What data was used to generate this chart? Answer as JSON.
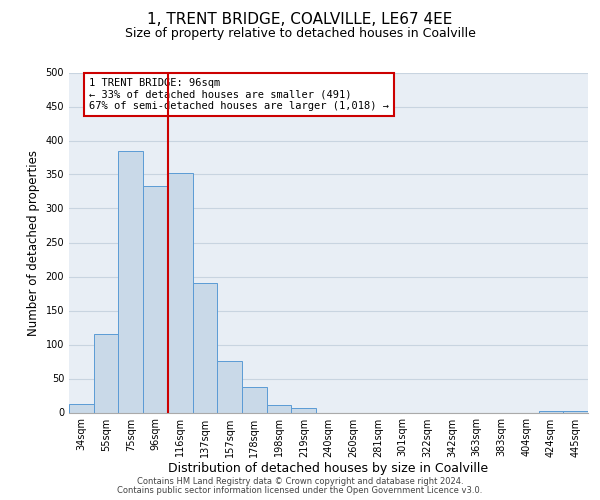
{
  "title": "1, TRENT BRIDGE, COALVILLE, LE67 4EE",
  "subtitle": "Size of property relative to detached houses in Coalville",
  "xlabel": "Distribution of detached houses by size in Coalville",
  "ylabel": "Number of detached properties",
  "bar_labels": [
    "34sqm",
    "55sqm",
    "75sqm",
    "96sqm",
    "116sqm",
    "137sqm",
    "157sqm",
    "178sqm",
    "198sqm",
    "219sqm",
    "240sqm",
    "260sqm",
    "281sqm",
    "301sqm",
    "322sqm",
    "342sqm",
    "363sqm",
    "383sqm",
    "404sqm",
    "424sqm",
    "445sqm"
  ],
  "bar_values": [
    12,
    115,
    385,
    333,
    352,
    190,
    76,
    38,
    11,
    6,
    0,
    0,
    0,
    0,
    0,
    0,
    0,
    0,
    0,
    2,
    2
  ],
  "bar_color": "#c9d9e8",
  "bar_edgecolor": "#5b9bd5",
  "vline_color": "#cc0000",
  "vline_index": 3,
  "annotation_box_text": "1 TRENT BRIDGE: 96sqm\n← 33% of detached houses are smaller (491)\n67% of semi-detached houses are larger (1,018) →",
  "annotation_box_color": "#cc0000",
  "ylim": [
    0,
    500
  ],
  "yticks": [
    0,
    50,
    100,
    150,
    200,
    250,
    300,
    350,
    400,
    450,
    500
  ],
  "grid_color": "#c8d4e0",
  "bg_color": "#e8eef5",
  "footer_line1": "Contains HM Land Registry data © Crown copyright and database right 2024.",
  "footer_line2": "Contains public sector information licensed under the Open Government Licence v3.0.",
  "title_fontsize": 11,
  "subtitle_fontsize": 9,
  "tick_fontsize": 7,
  "ylabel_fontsize": 8.5,
  "xlabel_fontsize": 9
}
